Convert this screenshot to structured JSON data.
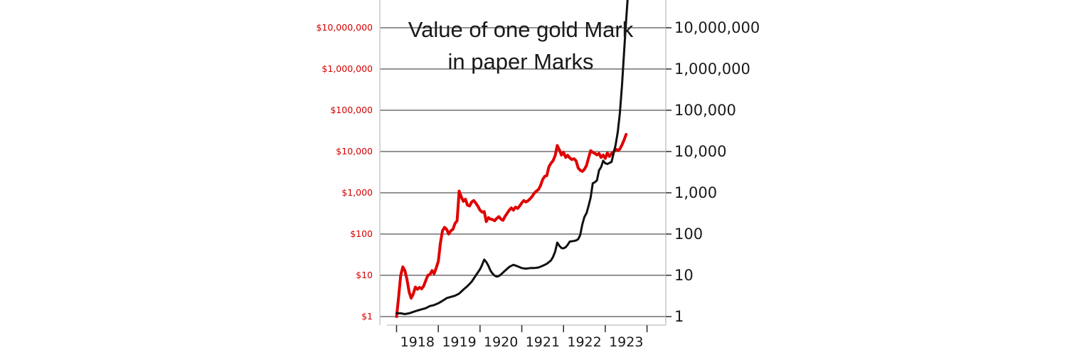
{
  "chart_data": {
    "type": "line",
    "title_lines": [
      "Value of one gold Mark",
      "in paper Marks"
    ],
    "y_scale": "log",
    "ylim": [
      1,
      10000000
    ],
    "xlim": [
      1917.1,
      1923.95
    ],
    "grid": true,
    "left_axis": {
      "color": "#d40000",
      "tick_values": [
        1,
        10,
        100,
        1000,
        10000,
        100000,
        1000000,
        10000000
      ],
      "tick_labels": [
        "$1",
        "$10",
        "$100",
        "$1,000",
        "$10,000",
        "$100,000",
        "$1,000,000",
        "$10,000,000"
      ]
    },
    "right_axis": {
      "color": "#1a1a1a",
      "tick_values": [
        1,
        10,
        100,
        1000,
        10000,
        100000,
        1000000,
        10000000
      ],
      "tick_labels": [
        "1",
        "10",
        "100",
        "1,000",
        "10,000",
        "100,000",
        "1,000,000",
        "10,000,000"
      ]
    },
    "x_axis": {
      "tick_values": [
        1918,
        1919,
        1920,
        1921,
        1922,
        1923
      ],
      "tick_labels": [
        "1918",
        "1919",
        "1920",
        "1921",
        "1922",
        "1923"
      ],
      "minor_tick_values": [
        1917.5,
        1918.5,
        1919.5,
        1920.5,
        1921.5,
        1922.5,
        1923.5
      ]
    },
    "series": [
      {
        "color": "#e00000",
        "points": [
          [
            1917.5,
            1
          ],
          [
            1917.55,
            3
          ],
          [
            1917.6,
            10
          ],
          [
            1917.65,
            16
          ],
          [
            1917.7,
            13
          ],
          [
            1917.75,
            8
          ],
          [
            1917.8,
            4
          ],
          [
            1917.85,
            2.8
          ],
          [
            1917.9,
            3.5
          ],
          [
            1917.95,
            5.2
          ],
          [
            1918.0,
            4.6
          ],
          [
            1918.05,
            5.1
          ],
          [
            1918.1,
            4.7
          ],
          [
            1918.15,
            5.5
          ],
          [
            1918.2,
            7.5
          ],
          [
            1918.25,
            10
          ],
          [
            1918.3,
            10.5
          ],
          [
            1918.35,
            13
          ],
          [
            1918.4,
            11
          ],
          [
            1918.45,
            15
          ],
          [
            1918.5,
            22
          ],
          [
            1918.55,
            60
          ],
          [
            1918.6,
            120
          ],
          [
            1918.65,
            145
          ],
          [
            1918.7,
            130
          ],
          [
            1918.75,
            100
          ],
          [
            1918.8,
            120
          ],
          [
            1918.85,
            130
          ],
          [
            1918.9,
            180
          ],
          [
            1918.95,
            210
          ],
          [
            1919.0,
            1100
          ],
          [
            1919.05,
            800
          ],
          [
            1919.1,
            620
          ],
          [
            1919.15,
            700
          ],
          [
            1919.2,
            500
          ],
          [
            1919.25,
            480
          ],
          [
            1919.3,
            600
          ],
          [
            1919.35,
            650
          ],
          [
            1919.4,
            560
          ],
          [
            1919.45,
            470
          ],
          [
            1919.5,
            380
          ],
          [
            1919.55,
            340
          ],
          [
            1919.6,
            350
          ],
          [
            1919.65,
            200
          ],
          [
            1919.7,
            250
          ],
          [
            1919.75,
            230
          ],
          [
            1919.8,
            225
          ],
          [
            1919.85,
            210
          ],
          [
            1919.9,
            240
          ],
          [
            1919.95,
            265
          ],
          [
            1920.0,
            230
          ],
          [
            1920.05,
            215
          ],
          [
            1920.1,
            270
          ],
          [
            1920.15,
            320
          ],
          [
            1920.2,
            380
          ],
          [
            1920.25,
            430
          ],
          [
            1920.3,
            380
          ],
          [
            1920.35,
            450
          ],
          [
            1920.4,
            420
          ],
          [
            1920.45,
            480
          ],
          [
            1920.5,
            570
          ],
          [
            1920.55,
            650
          ],
          [
            1920.6,
            600
          ],
          [
            1920.65,
            640
          ],
          [
            1920.7,
            720
          ],
          [
            1920.75,
            820
          ],
          [
            1920.8,
            980
          ],
          [
            1920.85,
            1100
          ],
          [
            1920.9,
            1200
          ],
          [
            1920.95,
            1500
          ],
          [
            1921.0,
            2100
          ],
          [
            1921.05,
            2500
          ],
          [
            1921.1,
            2600
          ],
          [
            1921.15,
            4300
          ],
          [
            1921.2,
            5200
          ],
          [
            1921.25,
            6000
          ],
          [
            1921.3,
            8000
          ],
          [
            1921.35,
            14000
          ],
          [
            1921.4,
            11000
          ],
          [
            1921.45,
            8200
          ],
          [
            1921.5,
            9600
          ],
          [
            1921.55,
            7200
          ],
          [
            1921.6,
            8100
          ],
          [
            1921.65,
            7000
          ],
          [
            1921.7,
            6400
          ],
          [
            1921.75,
            6700
          ],
          [
            1921.8,
            6000
          ],
          [
            1921.85,
            4000
          ],
          [
            1921.9,
            3500
          ],
          [
            1921.95,
            3300
          ],
          [
            1922.0,
            3700
          ],
          [
            1922.05,
            4600
          ],
          [
            1922.1,
            7000
          ],
          [
            1922.15,
            10500
          ],
          [
            1922.2,
            9600
          ],
          [
            1922.25,
            9000
          ],
          [
            1922.3,
            8300
          ],
          [
            1922.35,
            9000
          ],
          [
            1922.4,
            7200
          ],
          [
            1922.45,
            8200
          ],
          [
            1922.5,
            6800
          ],
          [
            1922.55,
            9200
          ],
          [
            1922.6,
            7600
          ],
          [
            1922.65,
            9000
          ],
          [
            1922.7,
            9800
          ],
          [
            1922.75,
            11500
          ],
          [
            1922.8,
            10500
          ],
          [
            1922.85,
            11500
          ],
          [
            1922.9,
            14500
          ],
          [
            1922.95,
            19000
          ],
          [
            1923.0,
            26000
          ]
        ]
      },
      {
        "color": "#111111",
        "points": [
          [
            1917.5,
            1.2
          ],
          [
            1917.6,
            1.2
          ],
          [
            1917.7,
            1.15
          ],
          [
            1917.8,
            1.2
          ],
          [
            1917.9,
            1.3
          ],
          [
            1918.0,
            1.4
          ],
          [
            1918.1,
            1.5
          ],
          [
            1918.2,
            1.6
          ],
          [
            1918.3,
            1.8
          ],
          [
            1918.4,
            1.9
          ],
          [
            1918.5,
            2.1
          ],
          [
            1918.6,
            2.4
          ],
          [
            1918.7,
            2.8
          ],
          [
            1918.8,
            3.0
          ],
          [
            1918.9,
            3.2
          ],
          [
            1919.0,
            3.6
          ],
          [
            1919.1,
            4.5
          ],
          [
            1919.2,
            5.5
          ],
          [
            1919.3,
            7.0
          ],
          [
            1919.4,
            10
          ],
          [
            1919.5,
            14
          ],
          [
            1919.55,
            18
          ],
          [
            1919.6,
            24
          ],
          [
            1919.65,
            21
          ],
          [
            1919.7,
            17
          ],
          [
            1919.75,
            13
          ],
          [
            1919.8,
            11
          ],
          [
            1919.85,
            9.8
          ],
          [
            1919.9,
            9.3
          ],
          [
            1919.95,
            9.6
          ],
          [
            1920.0,
            10.5
          ],
          [
            1920.1,
            13
          ],
          [
            1920.2,
            16
          ],
          [
            1920.3,
            18
          ],
          [
            1920.4,
            16.5
          ],
          [
            1920.5,
            15
          ],
          [
            1920.6,
            14.5
          ],
          [
            1920.7,
            15
          ],
          [
            1920.8,
            15
          ],
          [
            1920.9,
            15.5
          ],
          [
            1921.0,
            17
          ],
          [
            1921.1,
            19
          ],
          [
            1921.2,
            23
          ],
          [
            1921.25,
            28
          ],
          [
            1921.3,
            38
          ],
          [
            1921.35,
            62
          ],
          [
            1921.4,
            52
          ],
          [
            1921.45,
            46
          ],
          [
            1921.5,
            45
          ],
          [
            1921.55,
            48
          ],
          [
            1921.6,
            55
          ],
          [
            1921.65,
            66
          ],
          [
            1921.7,
            67
          ],
          [
            1921.75,
            68
          ],
          [
            1921.8,
            70
          ],
          [
            1921.85,
            75
          ],
          [
            1921.9,
            95
          ],
          [
            1921.95,
            170
          ],
          [
            1922.0,
            260
          ],
          [
            1922.05,
            320
          ],
          [
            1922.1,
            480
          ],
          [
            1922.15,
            780
          ],
          [
            1922.2,
            1700
          ],
          [
            1922.25,
            1800
          ],
          [
            1922.3,
            2000
          ],
          [
            1922.35,
            3500
          ],
          [
            1922.4,
            4200
          ],
          [
            1922.45,
            6000
          ],
          [
            1922.5,
            5200
          ],
          [
            1922.55,
            5000
          ],
          [
            1922.6,
            5300
          ],
          [
            1922.65,
            5600
          ],
          [
            1922.7,
            9000
          ],
          [
            1922.75,
            15000
          ],
          [
            1922.8,
            30000
          ],
          [
            1922.85,
            85000
          ],
          [
            1922.9,
            400000
          ],
          [
            1922.95,
            2500000
          ],
          [
            1923.0,
            15000000
          ],
          [
            1923.05,
            80000000
          ]
        ]
      }
    ]
  }
}
